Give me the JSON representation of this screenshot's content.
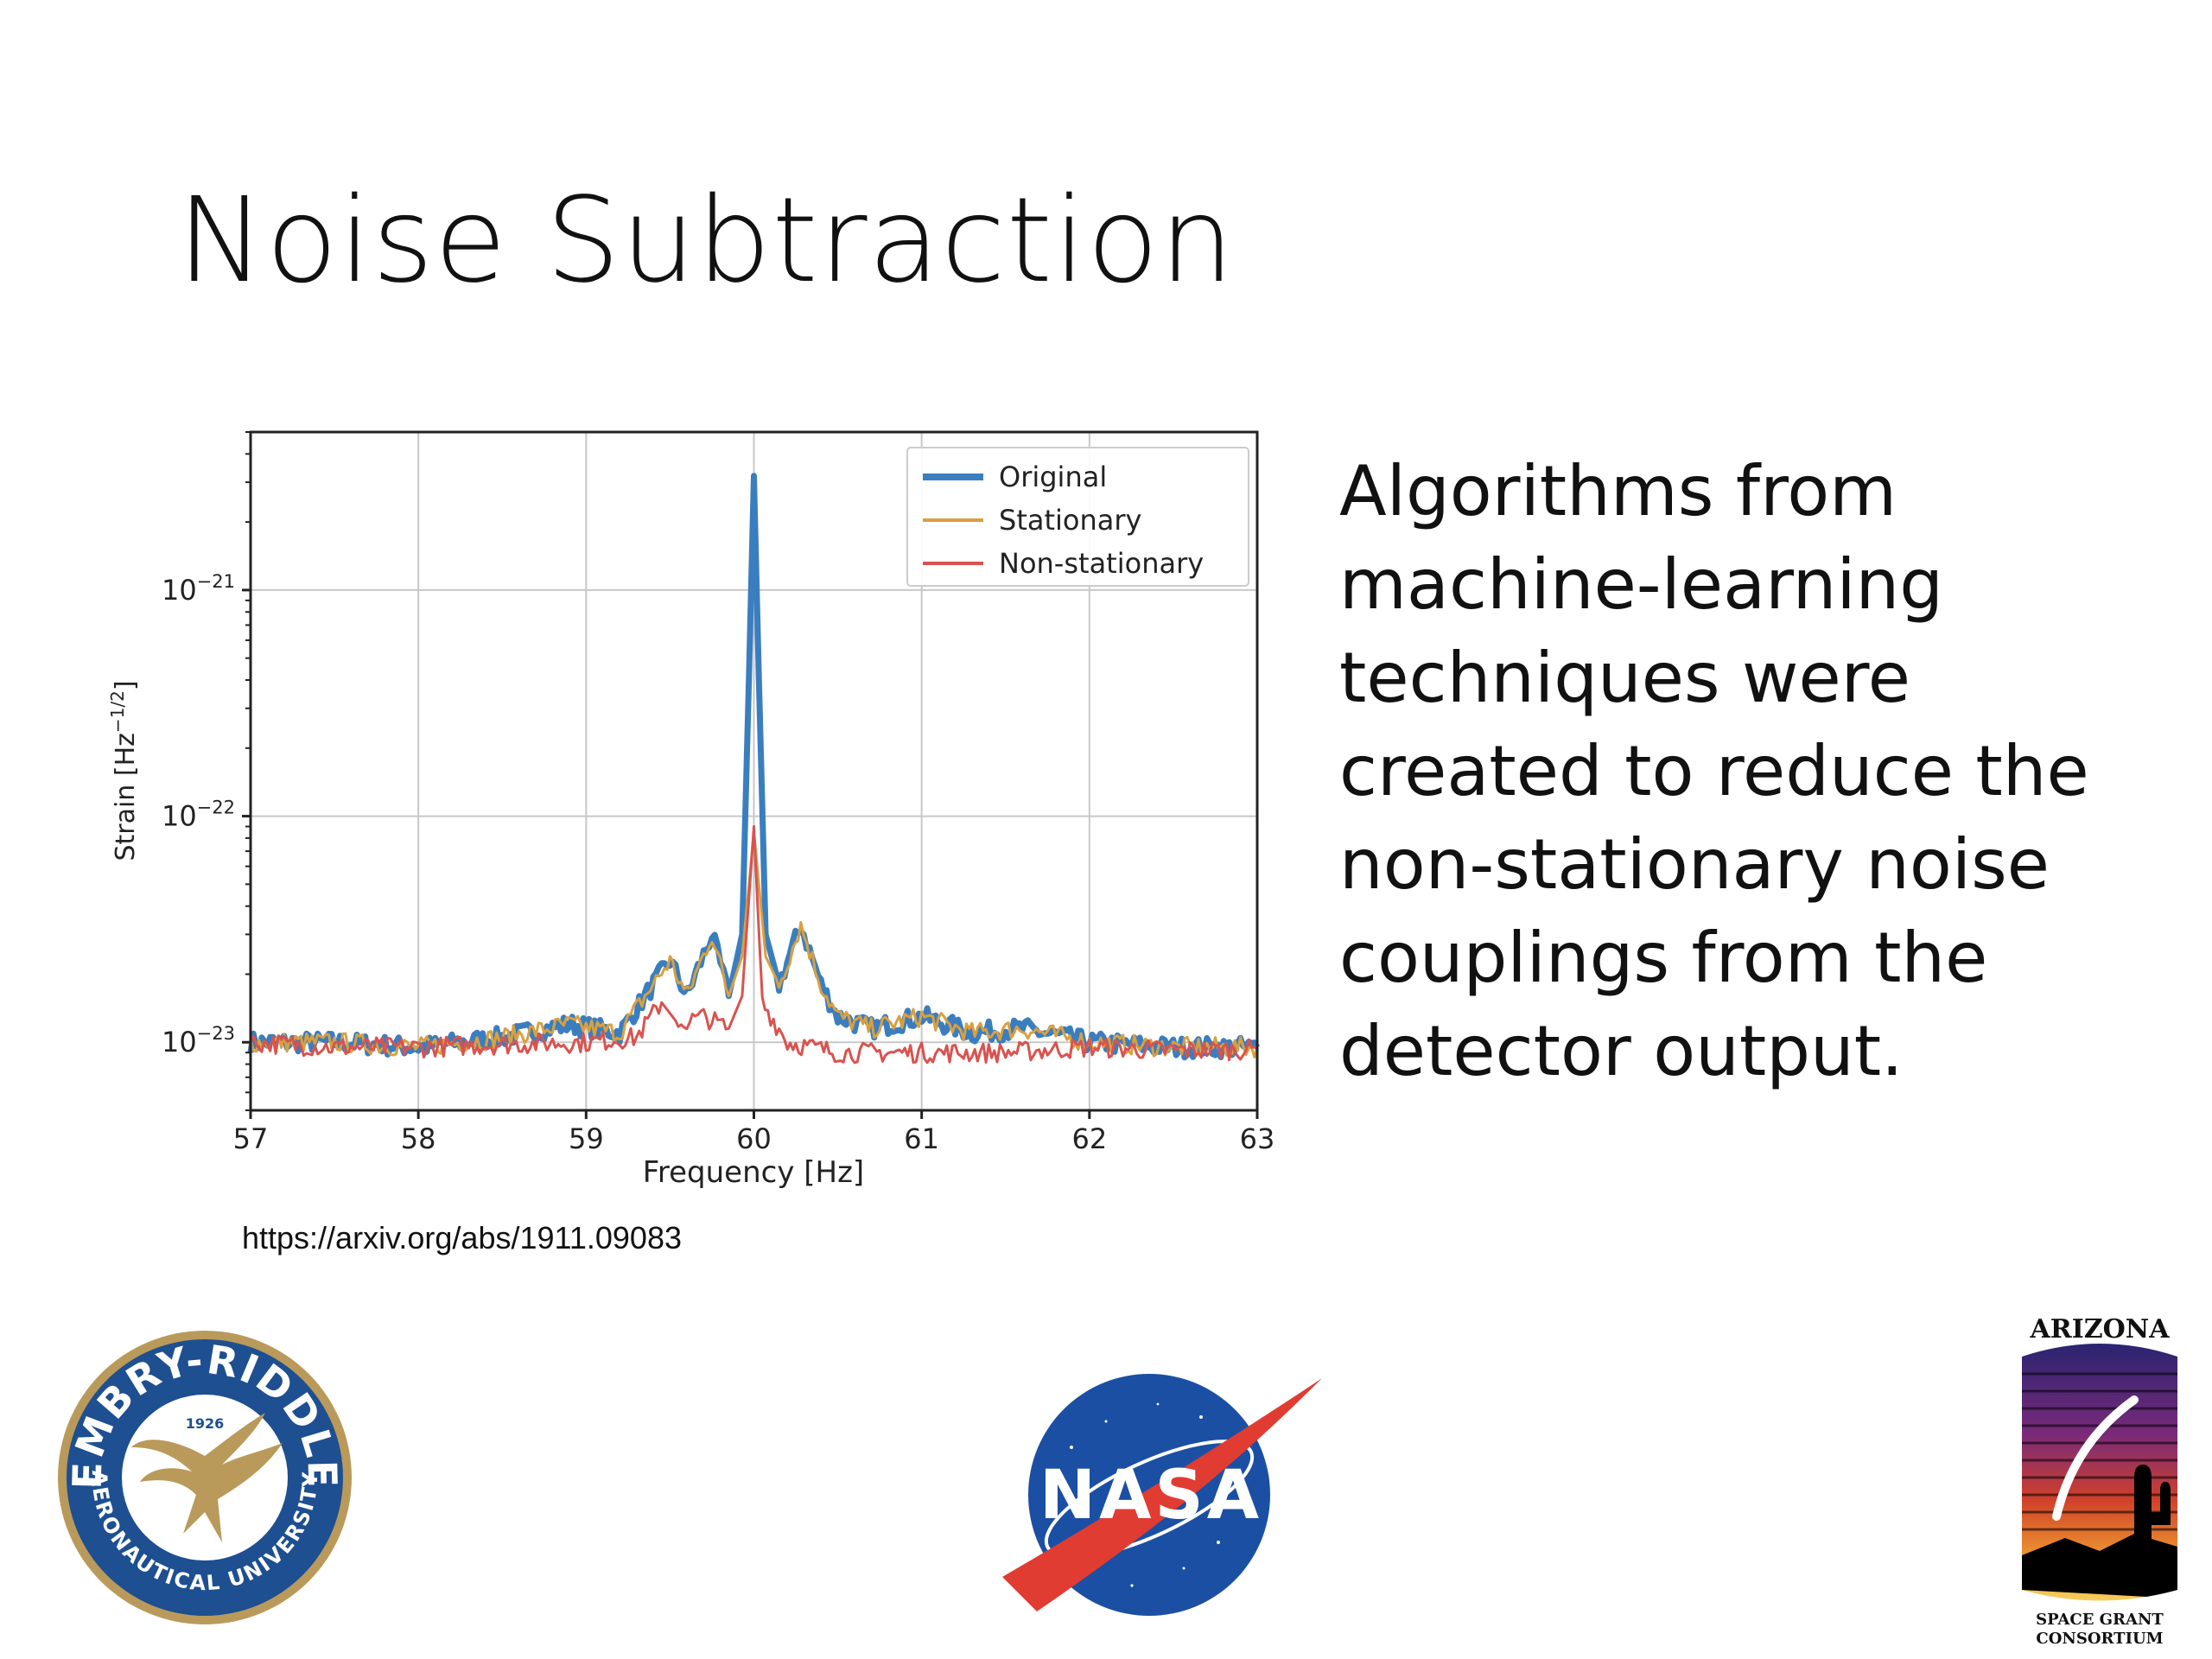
{
  "slide": {
    "title": "Noise Subtraction",
    "body": "Algorithms from\nmachine-learning\ntechniques were\ncreated to reduce the\nnon-stationary noise\ncouplings from the\ndetector output.",
    "citation": "https://arxiv.org/abs/1911.09083"
  },
  "chart_data": {
    "type": "line",
    "xlabel": "Frequency [Hz]",
    "ylabel": "Strain [Hz⁻¹ᐟ²]",
    "ylabel_text": "Strain [Hz",
    "ylabel_exp": "−1/2",
    "ylabel_close": "]",
    "xlim": [
      57,
      63
    ],
    "ylim": [
      5e-24,
      5e-21
    ],
    "yscale": "log",
    "grid": true,
    "legend": "top-right",
    "x_ticks": [
      57,
      58,
      59,
      60,
      61,
      62,
      63
    ],
    "y_ticks": [
      {
        "value": 1e-21,
        "base": "10",
        "exp": "−21"
      },
      {
        "value": 1e-22,
        "base": "10",
        "exp": "−22"
      },
      {
        "value": 1e-23,
        "base": "10",
        "exp": "−23"
      }
    ],
    "series": [
      {
        "name": "Original",
        "color": "#3a7ebf",
        "width": 7,
        "points": [
          [
            57.0,
            1e-23
          ],
          [
            57.5,
            1e-23
          ],
          [
            58.0,
            9.5e-24
          ],
          [
            58.5,
            1.05e-23
          ],
          [
            58.9,
            1.2e-23
          ],
          [
            59.2,
            1.1e-23
          ],
          [
            59.5,
            2.3e-23
          ],
          [
            59.6,
            1.6e-23
          ],
          [
            59.75,
            3e-23
          ],
          [
            59.85,
            1.6e-23
          ],
          [
            59.93,
            3e-23
          ],
          [
            59.97,
            4e-22
          ],
          [
            60.0,
            3.2e-21
          ],
          [
            60.03,
            4e-22
          ],
          [
            60.07,
            3e-23
          ],
          [
            60.15,
            1.8e-23
          ],
          [
            60.28,
            3.3e-23
          ],
          [
            60.4,
            1.8e-23
          ],
          [
            60.5,
            1.3e-23
          ],
          [
            60.7,
            1.15e-23
          ],
          [
            61.0,
            1.3e-23
          ],
          [
            61.3,
            1.1e-23
          ],
          [
            61.6,
            1.15e-23
          ],
          [
            62.0,
            1e-23
          ],
          [
            62.5,
            9.5e-24
          ],
          [
            63.0,
            9.5e-24
          ]
        ]
      },
      {
        "name": "Stationary",
        "color": "#d9a040",
        "width": 3,
        "points": [
          [
            57.0,
            1e-23
          ],
          [
            57.5,
            1e-23
          ],
          [
            58.0,
            9.5e-24
          ],
          [
            58.5,
            1.05e-23
          ],
          [
            58.9,
            1.2e-23
          ],
          [
            59.2,
            1.1e-23
          ],
          [
            59.5,
            2.3e-23
          ],
          [
            59.6,
            1.6e-23
          ],
          [
            59.75,
            3e-23
          ],
          [
            59.85,
            1.6e-23
          ],
          [
            59.93,
            2.4e-23
          ],
          [
            60.0,
            8.5e-23
          ],
          [
            60.07,
            2.4e-23
          ],
          [
            60.15,
            1.8e-23
          ],
          [
            60.28,
            3.3e-23
          ],
          [
            60.4,
            1.8e-23
          ],
          [
            60.5,
            1.3e-23
          ],
          [
            60.7,
            1.15e-23
          ],
          [
            61.0,
            1.3e-23
          ],
          [
            61.3,
            1.1e-23
          ],
          [
            61.6,
            1.15e-23
          ],
          [
            62.0,
            1e-23
          ],
          [
            62.5,
            9.5e-24
          ],
          [
            63.0,
            9.5e-24
          ]
        ]
      },
      {
        "name": "Non-stationary",
        "color": "#d9534f",
        "width": 3,
        "points": [
          [
            57.0,
            1e-23
          ],
          [
            57.5,
            9.5e-24
          ],
          [
            58.0,
            9.5e-24
          ],
          [
            58.5,
            9.8e-24
          ],
          [
            59.0,
            1e-23
          ],
          [
            59.3,
            1.05e-23
          ],
          [
            59.45,
            1.5e-23
          ],
          [
            59.55,
            1.2e-23
          ],
          [
            59.7,
            1.3e-23
          ],
          [
            59.85,
            1.15e-23
          ],
          [
            59.93,
            1.6e-23
          ],
          [
            60.0,
            9e-23
          ],
          [
            60.05,
            1.5e-23
          ],
          [
            60.2,
            1e-23
          ],
          [
            60.5,
            9e-24
          ],
          [
            61.0,
            9e-24
          ],
          [
            61.5,
            9e-24
          ],
          [
            62.0,
            9.5e-24
          ],
          [
            62.5,
            9.2e-24
          ],
          [
            63.0,
            9.3e-24
          ]
        ]
      }
    ]
  },
  "logos": {
    "erau": {
      "ring_top": "EMBRY-RIDDLE",
      "ring_bottom": "AERONAUTICAL UNIVERSITY",
      "year": "1926",
      "color_ring": "#1d4f91",
      "color_gold": "#b99a5b"
    },
    "nasa": {
      "wordmark": "NASA",
      "color_blue": "#1b4fa3",
      "color_red": "#e03c31"
    },
    "azsgc": {
      "top": "ARIZONA",
      "bottom_1": "SPACE GRANT",
      "bottom_2": "CONSORTIUM"
    }
  }
}
